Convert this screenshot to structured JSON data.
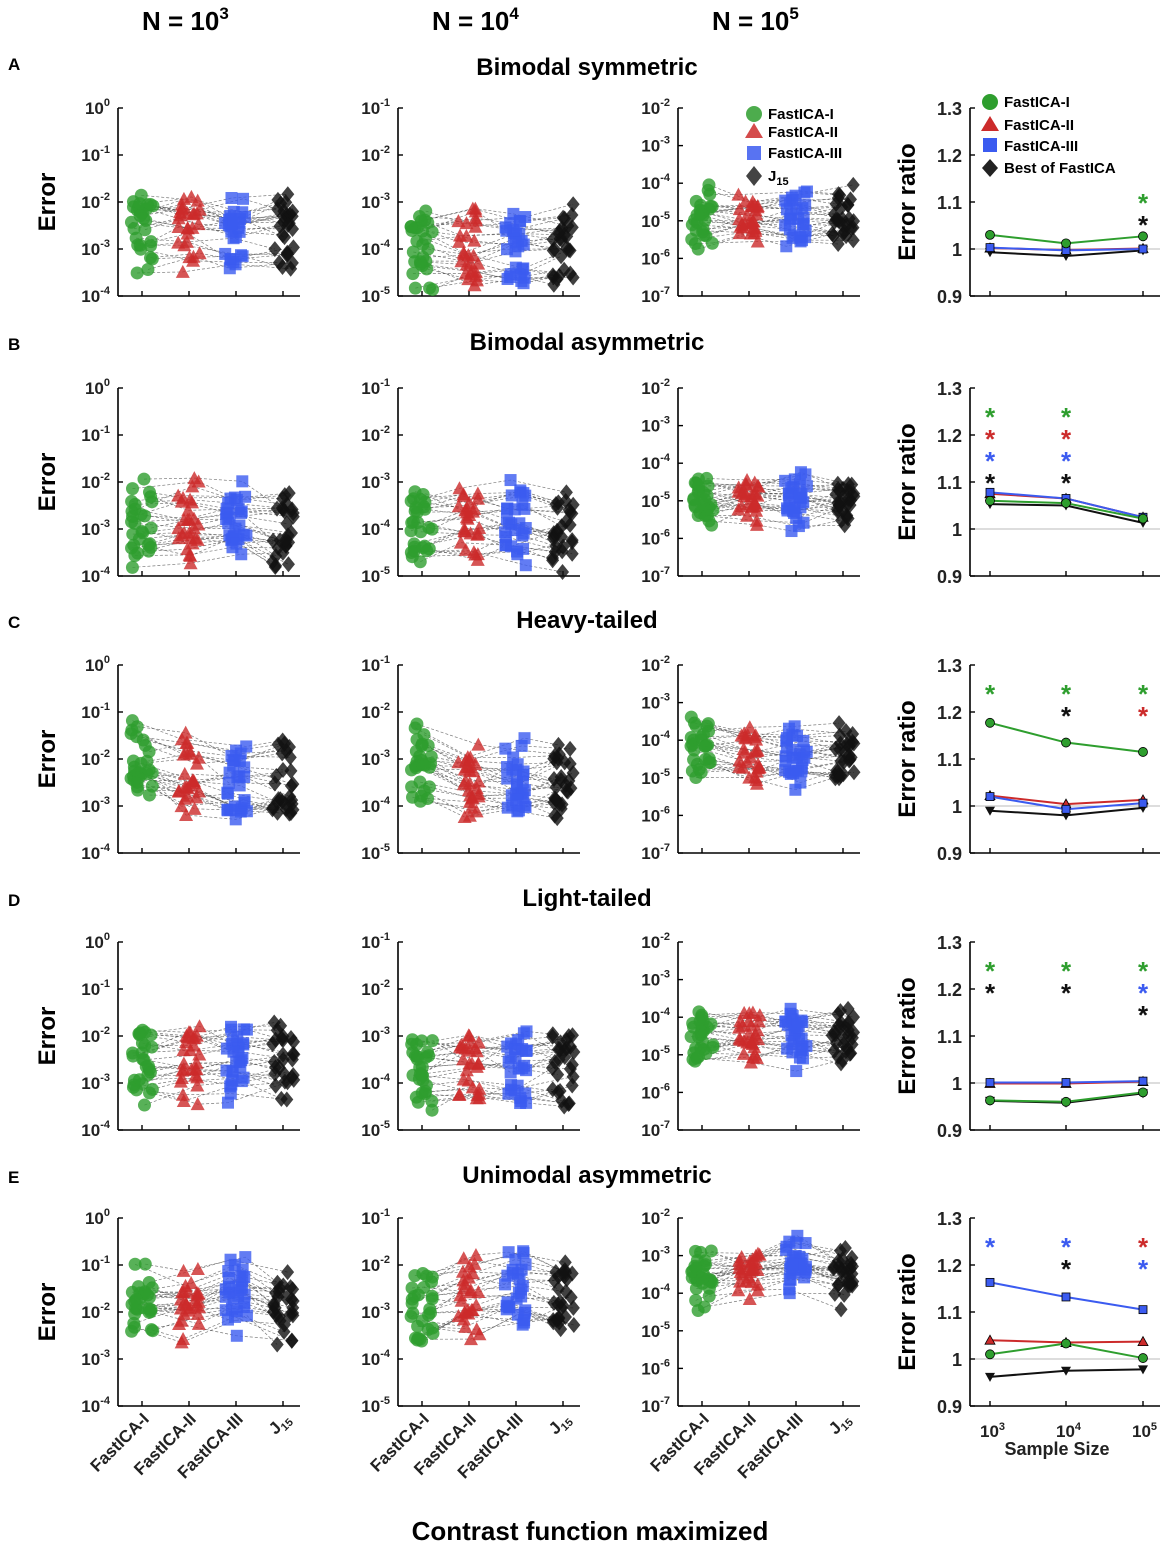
{
  "columns": [
    {
      "base": "N = 10",
      "exp": "3"
    },
    {
      "base": "N = 10",
      "exp": "4"
    },
    {
      "base": "N = 10",
      "exp": "5"
    }
  ],
  "xlabel": "Contrast function maximized",
  "methods": [
    "FastICA-I",
    "FastICA-II",
    "FastICA-III",
    "J",
    "15"
  ],
  "legend_left": {
    "items": [
      "FastICA-I",
      "FastICA-II",
      "FastICA-III",
      "J"
    ],
    "j_sub": "15"
  },
  "legend_right": {
    "items": [
      "FastICA-I",
      "FastICA-II",
      "FastICA-III",
      "Best of FastICA"
    ]
  },
  "error_ylabel": "Error",
  "ratio_ylabel": "Error ratio",
  "ratio_xlabel": "Sample Size",
  "ratio_xticks": [
    {
      "b": "10",
      "e": "3"
    },
    {
      "b": "10",
      "e": "4"
    },
    {
      "b": "10",
      "e": "5"
    }
  ],
  "ratio_yticks": [
    "1.3",
    "1.2",
    "1.1",
    "1",
    "0.9"
  ],
  "colors": {
    "FastICA-I": "#2e9e2e",
    "FastICA-II": "#cc2b2b",
    "FastICA-III": "#3b5bf0",
    "Best": "#111111"
  },
  "error_ytick_labels": [
    [
      {
        "b": "10",
        "e": "0"
      },
      {
        "b": "10",
        "e": "-1"
      },
      {
        "b": "10",
        "e": "-2"
      },
      {
        "b": "10",
        "e": "-3"
      },
      {
        "b": "10",
        "e": "-4"
      }
    ],
    [
      {
        "b": "10",
        "e": "-1"
      },
      {
        "b": "10",
        "e": "-2"
      },
      {
        "b": "10",
        "e": "-3"
      },
      {
        "b": "10",
        "e": "-4"
      },
      {
        "b": "10",
        "e": "-5"
      }
    ],
    [
      {
        "b": "10",
        "e": "-2"
      },
      {
        "b": "10",
        "e": "-3"
      },
      {
        "b": "10",
        "e": "-4"
      },
      {
        "b": "10",
        "e": "-5"
      },
      {
        "b": "10",
        "e": "-6"
      },
      {
        "b": "10",
        "e": "-7"
      }
    ]
  ],
  "chart_data": [
    {
      "letter": "A",
      "title": "Bimodal symmetric",
      "type": "scatter",
      "error_centers_log10": [
        [
          -2.7,
          -2.75,
          -2.8,
          -2.75
        ],
        [
          -3.95,
          -4.0,
          -4.0,
          -3.95
        ],
        [
          -4.95,
          -5.0,
          -5.0,
          -5.0
        ]
      ],
      "error_ratio": {
        "type": "line",
        "x": [
          1000,
          10000,
          100000
        ],
        "ylim": [
          0.9,
          1.3
        ],
        "series": [
          {
            "name": "FastICA-I",
            "values": [
              1.03,
              1.012,
              1.027
            ]
          },
          {
            "name": "FastICA-II",
            "values": [
              1.002,
              0.998,
              1.001
            ]
          },
          {
            "name": "FastICA-III",
            "values": [
              1.003,
              0.997,
              1.0
            ]
          },
          {
            "name": "Best of FastICA",
            "values": [
              0.993,
              0.985,
              0.997
            ]
          }
        ],
        "stars": [
          [],
          [],
          [
            "FastICA-I",
            "Best of FastICA"
          ]
        ]
      }
    },
    {
      "letter": "B",
      "title": "Bimodal asymmetric",
      "type": "scatter",
      "error_centers_log10": [
        [
          -2.85,
          -2.8,
          -2.8,
          -3.0
        ],
        [
          -3.9,
          -3.85,
          -3.85,
          -4.0
        ],
        [
          -4.95,
          -4.9,
          -4.9,
          -5.05
        ]
      ],
      "error_ratio": {
        "type": "line",
        "x": [
          1000,
          10000,
          100000
        ],
        "ylim": [
          0.9,
          1.3
        ],
        "series": [
          {
            "name": "FastICA-I",
            "values": [
              1.06,
              1.055,
              1.022
            ]
          },
          {
            "name": "FastICA-II",
            "values": [
              1.075,
              1.065,
              1.025
            ]
          },
          {
            "name": "FastICA-III",
            "values": [
              1.078,
              1.065,
              1.025
            ]
          },
          {
            "name": "Best of FastICA",
            "values": [
              1.053,
              1.05,
              1.013
            ]
          }
        ],
        "stars": [
          [
            "FastICA-I",
            "FastICA-II",
            "FastICA-III",
            "Best of FastICA"
          ],
          [
            "FastICA-I",
            "FastICA-II",
            "FastICA-III",
            "Best of FastICA"
          ],
          []
        ]
      }
    },
    {
      "letter": "C",
      "title": "Heavy-tailed",
      "type": "scatter",
      "error_centers_log10": [
        [
          -1.95,
          -2.3,
          -2.4,
          -2.45
        ],
        [
          -3.0,
          -3.45,
          -3.5,
          -3.45
        ],
        [
          -4.1,
          -4.4,
          -4.45,
          -4.4
        ]
      ],
      "error_ratio": {
        "type": "line",
        "x": [
          1000,
          10000,
          100000
        ],
        "ylim": [
          0.9,
          1.3
        ],
        "series": [
          {
            "name": "FastICA-I",
            "values": [
              1.177,
              1.135,
              1.115
            ]
          },
          {
            "name": "FastICA-II",
            "values": [
              1.022,
              1.004,
              1.013
            ]
          },
          {
            "name": "FastICA-III",
            "values": [
              1.02,
              0.993,
              1.006
            ]
          },
          {
            "name": "Best of FastICA",
            "values": [
              0.99,
              0.98,
              0.996
            ]
          }
        ],
        "stars": [
          [
            "FastICA-I"
          ],
          [
            "FastICA-I",
            "Best of FastICA"
          ],
          [
            "FastICA-I",
            "FastICA-II"
          ]
        ]
      }
    },
    {
      "letter": "D",
      "title": "Light-tailed",
      "type": "scatter",
      "error_centers_log10": [
        [
          -2.65,
          -2.6,
          -2.55,
          -2.55
        ],
        [
          -3.85,
          -3.75,
          -3.7,
          -3.75
        ],
        [
          -4.6,
          -4.55,
          -4.55,
          -4.55
        ]
      ],
      "error_ratio": {
        "type": "line",
        "x": [
          1000,
          10000,
          100000
        ],
        "ylim": [
          0.9,
          1.3
        ],
        "series": [
          {
            "name": "FastICA-I",
            "values": [
              0.963,
              0.96,
              0.98
            ]
          },
          {
            "name": "FastICA-II",
            "values": [
              0.999,
              0.999,
              1.003
            ]
          },
          {
            "name": "FastICA-III",
            "values": [
              1.001,
              1.001,
              1.004
            ]
          },
          {
            "name": "Best of FastICA",
            "values": [
              0.962,
              0.958,
              0.978
            ]
          }
        ],
        "stars": [
          [
            "FastICA-I",
            "Best of FastICA"
          ],
          [
            "FastICA-I",
            "Best of FastICA"
          ],
          [
            "FastICA-I",
            "FastICA-III",
            "Best of FastICA"
          ]
        ]
      }
    },
    {
      "letter": "E",
      "title": "Unimodal asymmetric",
      "type": "scatter",
      "error_centers_log10": [
        [
          -1.8,
          -1.75,
          -1.6,
          -1.85
        ],
        [
          -2.9,
          -2.7,
          -2.55,
          -2.65
        ],
        [
          -3.6,
          -3.45,
          -3.3,
          -3.55
        ]
      ],
      "error_ratio": {
        "type": "line",
        "x": [
          1000,
          10000,
          100000
        ],
        "ylim": [
          0.9,
          1.3
        ],
        "series": [
          {
            "name": "FastICA-I",
            "values": [
              1.01,
              1.033,
              1.002
            ]
          },
          {
            "name": "FastICA-II",
            "values": [
              1.04,
              1.035,
              1.037
            ]
          },
          {
            "name": "FastICA-III",
            "values": [
              1.163,
              1.132,
              1.105
            ]
          },
          {
            "name": "Best of FastICA",
            "values": [
              0.962,
              0.975,
              0.978
            ]
          }
        ],
        "stars": [
          [
            "FastICA-III"
          ],
          [
            "FastICA-III",
            "Best of FastICA"
          ],
          [
            "FastICA-II",
            "FastICA-III"
          ]
        ]
      }
    }
  ]
}
